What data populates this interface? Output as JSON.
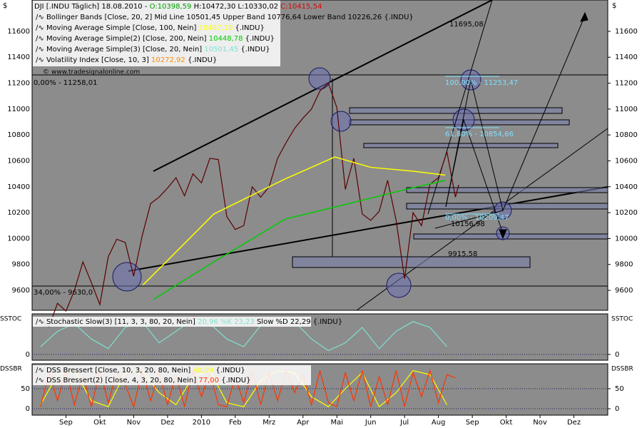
{
  "header": {
    "symbol": "DJI [.INDU  Täglich]",
    "date": "18.08.2010 -",
    "open": "O:10398,59",
    "high": "H:10472,30",
    "low": "L:10330,02",
    "close": "C:10415,54"
  },
  "legend": [
    {
      "text": "Bollinger Bands [Close, 20, 2] Mid Line 10501,45 Upper Band 10776,64 Lower Band 10226,26 {.INDU}",
      "color": "#000000"
    },
    {
      "text": "Moving Average Simple [Close, 100, Nein]",
      "value": "10487,18",
      "suffix": "{.INDU}",
      "color": "#ffff00"
    },
    {
      "text": "Moving Average Simple(2) [Close, 200, Nein]",
      "value": "10448,78",
      "suffix": "{.INDU}",
      "color": "#00cc00"
    },
    {
      "text": "Moving Average Simple(3) [Close, 20, Nein]",
      "value": "10501,45",
      "suffix": "{.INDU}",
      "color": "#7fe0d0"
    },
    {
      "text": "Volatility Index [Close, 10, 3]",
      "value": "10272,92",
      "suffix": "{.INDU}",
      "color": "#ff8c00"
    }
  ],
  "copyright": "© www.tradesignalonline.com",
  "annotations": [
    "11695,08",
    "100,00% - 11253,47",
    "61,80% - 10854,66",
    "0,00% - 10209,47",
    "10156,98",
    "9915,58",
    "0,00% - 11258,01",
    "34,00% - 9630,0"
  ],
  "chart_data": [
    {
      "type": "line",
      "axis_label": "$",
      "xlim": [
        -1,
        16
      ],
      "ylim": [
        9446,
        11842
      ],
      "yticks": [
        9600,
        9800,
        10000,
        10200,
        10400,
        10600,
        10800,
        11000,
        11200,
        11400,
        11600
      ],
      "xticks": [
        {
          "value": 0,
          "label": "Sep"
        },
        {
          "value": 1,
          "label": "Okt"
        },
        {
          "value": 2,
          "label": "Nov"
        },
        {
          "value": 3,
          "label": "Dez"
        },
        {
          "value": 4,
          "label": "2010"
        },
        {
          "value": 5,
          "label": "Feb"
        },
        {
          "value": 6,
          "label": "Mrz"
        },
        {
          "value": 7,
          "label": "Apr"
        },
        {
          "value": 8,
          "label": "Mai"
        },
        {
          "value": 9,
          "label": "Jun"
        },
        {
          "value": 10,
          "label": "Jul"
        },
        {
          "value": 11,
          "label": "Aug"
        },
        {
          "value": 12,
          "label": "Sep"
        },
        {
          "value": 13,
          "label": "Okt"
        },
        {
          "value": 14,
          "label": "Nov"
        },
        {
          "value": 15,
          "label": "Dez"
        }
      ],
      "series": [
        {
          "name": "DJI",
          "color": "#5a0000",
          "x": [
            -0.75,
            -0.5,
            -0.25,
            0,
            0.25,
            0.5,
            0.75,
            1,
            1.25,
            1.5,
            1.75,
            2,
            2.25,
            2.5,
            2.75,
            3,
            3.25,
            3.5,
            3.75,
            4,
            4.25,
            4.5,
            4.75,
            5,
            5.25,
            5.5,
            5.75,
            6,
            6.25,
            6.5,
            6.75,
            7,
            7.25,
            7.5,
            7.75,
            8,
            8.25,
            8.5,
            8.75,
            9,
            9.25,
            9.5,
            9.75,
            10,
            10.25,
            10.5,
            10.75,
            11,
            11.25,
            11.5,
            11.6
          ],
          "values": [
            9370,
            9320,
            9500,
            9440,
            9600,
            9820,
            9660,
            9490,
            9860,
            9995,
            9970,
            9710,
            10020,
            10270,
            10320,
            10390,
            10470,
            10330,
            10500,
            10430,
            10620,
            10610,
            10170,
            10070,
            10100,
            10400,
            10320,
            10400,
            10620,
            10740,
            10850,
            10930,
            11000,
            11140,
            11200,
            11010,
            10380,
            10620,
            10190,
            10140,
            10210,
            10450,
            10140,
            9690,
            10200,
            10100,
            10420,
            10470,
            10670,
            10320,
            10415
          ]
        },
        {
          "name": "Moving Average Simple",
          "color": "#ffff00",
          "x": [
            2.27,
            4.37,
            6.47,
            7.94,
            9.0,
            10.25,
            11.2
          ],
          "values": [
            9640,
            10190,
            10460,
            10630,
            10550,
            10520,
            10490
          ]
        },
        {
          "name": "Moving Average Simple(2)",
          "color": "#00cc00",
          "x": [
            2.58,
            4.37,
            6.47,
            8.36,
            10.04,
            11.2
          ],
          "values": [
            9530,
            9820,
            10150,
            10270,
            10380,
            10449
          ]
        }
      ]
    },
    {
      "type": "line",
      "label": "SSTOC",
      "legend_text": "Stochastic Slow(3) [11, 3, 3, 80, 20, Nein]",
      "legend_value": "20,96 %K 23,23",
      "legend_suffix": "Slow %D 22,29 {.INDU}",
      "xlim": [
        -1,
        16
      ],
      "ylim": [
        -15,
        105
      ],
      "yticks": [
        0
      ],
      "series": [
        {
          "name": "Slow %K",
          "color": "#7fe0d0",
          "x": [
            -0.75,
            -0.25,
            0.25,
            0.75,
            1.25,
            1.75,
            2.25,
            2.75,
            3.25,
            3.75,
            4.25,
            4.75,
            5.25,
            5.75,
            6.25,
            6.75,
            7.25,
            7.75,
            8.25,
            8.75,
            9.25,
            9.75,
            10.25,
            10.75,
            11.25
          ],
          "values": [
            20,
            60,
            80,
            40,
            15,
            70,
            85,
            30,
            60,
            90,
            80,
            40,
            20,
            75,
            90,
            85,
            40,
            10,
            30,
            70,
            15,
            60,
            85,
            70,
            20
          ]
        }
      ]
    },
    {
      "type": "line",
      "label": "DSSBR",
      "xlim": [
        -1,
        16
      ],
      "ylim": [
        -16,
        112
      ],
      "yticks": [
        0,
        50
      ],
      "series": [
        {
          "name": "DSS Bressert [Close, 10, 3, 20, 80, Nein]",
          "value_text": "40,09",
          "suffix": "{.INDU}",
          "color": "#ffff00",
          "x": [
            -0.75,
            -0.25,
            0.25,
            0.75,
            1.25,
            1.75,
            2.25,
            2.75,
            3.25,
            3.75,
            4.25,
            4.75,
            5.25,
            5.75,
            6.25,
            6.75,
            7.25,
            7.75,
            8.25,
            8.75,
            9.25,
            9.75,
            10.25,
            10.75,
            11.25
          ],
          "values": [
            10,
            85,
            95,
            20,
            5,
            90,
            95,
            40,
            10,
            80,
            95,
            15,
            5,
            70,
            95,
            90,
            30,
            5,
            50,
            90,
            5,
            40,
            95,
            85,
            10
          ]
        },
        {
          "name": "DSS Bressert(2) [Close, 4, 3, 20, 80, Nein]",
          "value_text": "77,00",
          "suffix": "{.INDU}",
          "color": "#ff3300",
          "x": [
            -0.75,
            -0.5,
            -0.25,
            0,
            0.25,
            0.5,
            0.75,
            1,
            1.25,
            1.5,
            1.75,
            2,
            2.25,
            2.5,
            2.75,
            3,
            3.25,
            3.5,
            3.75,
            4,
            4.25,
            4.5,
            4.75,
            5,
            5.25,
            5.5,
            5.75,
            6,
            6.25,
            6.5,
            6.75,
            7,
            7.25,
            7.5,
            7.75,
            8,
            8.25,
            8.5,
            8.75,
            9,
            9.25,
            9.5,
            9.75,
            10,
            10.25,
            10.5,
            10.75,
            11,
            11.25,
            11.5
          ],
          "values": [
            5,
            90,
            20,
            95,
            10,
            85,
            5,
            95,
            15,
            90,
            60,
            5,
            95,
            20,
            90,
            10,
            85,
            5,
            95,
            30,
            90,
            10,
            5,
            80,
            15,
            95,
            10,
            90,
            20,
            95,
            40,
            85,
            10,
            95,
            15,
            5,
            90,
            20,
            95,
            5,
            80,
            10,
            95,
            5,
            90,
            30,
            95,
            15,
            85,
            77
          ]
        }
      ]
    }
  ]
}
